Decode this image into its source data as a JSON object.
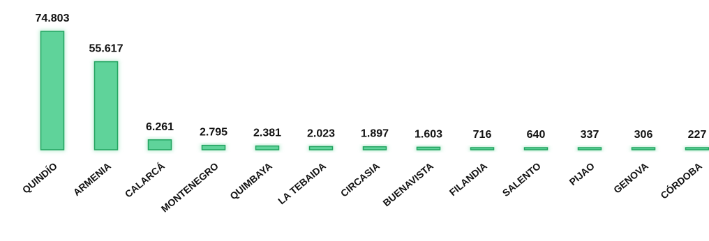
{
  "chart_data": {
    "type": "bar",
    "categories": [
      "QUINDÍO",
      "ARMENIA",
      "CALARCÁ",
      "MONTENEGRO",
      "QUIMBAYA",
      "LA TEBAIDA",
      "CIRCASIA",
      "BUENAVISTA",
      "FILANDIA",
      "SALENTO",
      "PIJAO",
      "GENOVA",
      "CÓRDOBA"
    ],
    "values": [
      74803,
      55617,
      6261,
      2795,
      2381,
      2023,
      1897,
      1603,
      716,
      640,
      337,
      306,
      227
    ],
    "value_labels": [
      "74.803",
      "55.617",
      "6.261",
      "2.795",
      "2.381",
      "2.023",
      "1.897",
      "1.603",
      "716",
      "640",
      "337",
      "306",
      "227"
    ],
    "title": "",
    "xlabel": "",
    "ylabel": "",
    "ylim": [
      0,
      74803
    ],
    "grid": false,
    "legend": "none",
    "colors": {
      "bar_fill": "#5fd39a",
      "bar_stroke": "#21a35f",
      "bar_glow": "#b8ecd0",
      "text": "#111111"
    }
  }
}
